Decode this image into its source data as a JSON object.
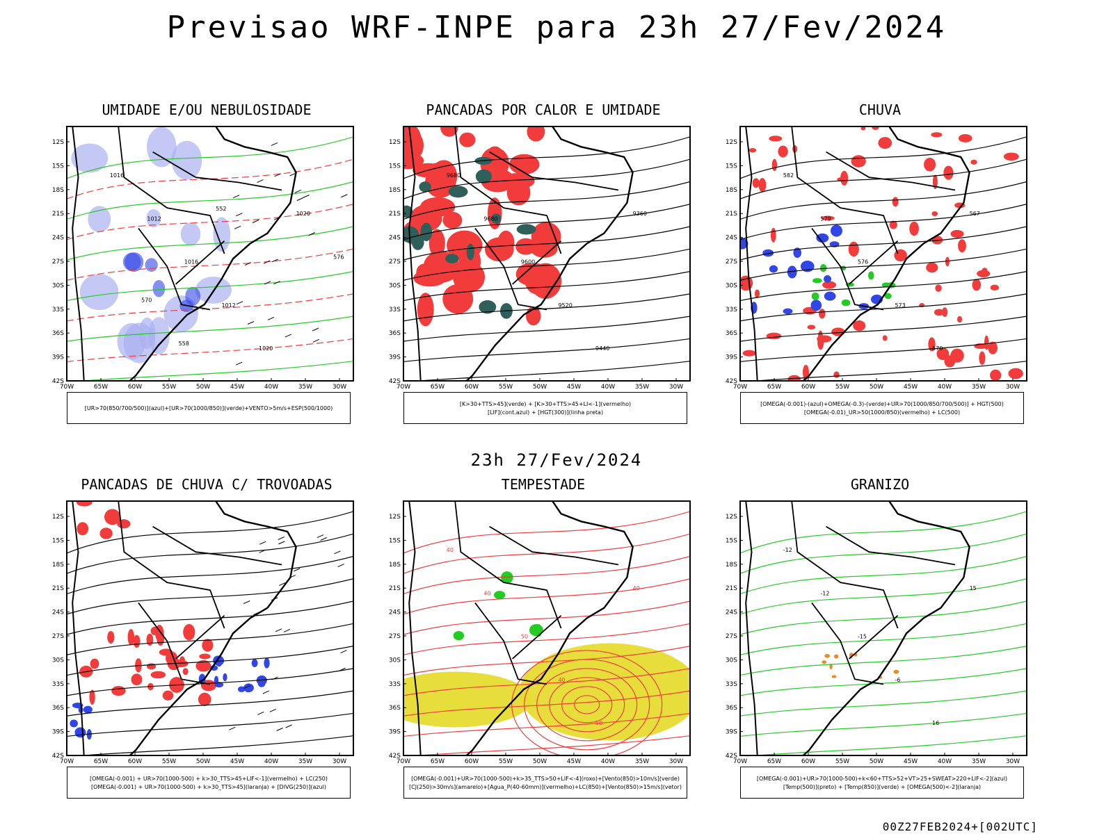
{
  "header": {
    "title": "Previsao WRF-INPE  para 23h 27/Fev/2024"
  },
  "subtitle": "23h 27/Fev/2024",
  "footer": "00Z27FEB2024+[002UTC]",
  "axes": {
    "lat_labels": [
      "12S",
      "15S",
      "18S",
      "21S",
      "24S",
      "27S",
      "30S",
      "33S",
      "36S",
      "39S",
      "42S"
    ],
    "lon_labels": [
      "70W",
      "65W",
      "60W",
      "55W",
      "50W",
      "45W",
      "40W",
      "35W",
      "30W"
    ]
  },
  "colors": {
    "red": "#f23c3c",
    "blue": "#3246e6",
    "green": "#22cc22",
    "yellow": "#e6dc32",
    "teal": "#2f5f5a",
    "lavender": "#aab0f0",
    "orange": "#e88a2a"
  },
  "panels": [
    {
      "title": "UMIDADE E/OU NEBULOSIDADE",
      "legend": [
        "[UR>70(850/700/500)](azul)+[UR>70(1000/850)](verde)+VENTO>5m/s+ESP(500/1000)"
      ],
      "labels": [
        "1016",
        "1012",
        "1016",
        "1012",
        "1020",
        "1020",
        "576",
        "570",
        "558",
        "552"
      ]
    },
    {
      "title": "PANCADAS POR CALOR E UMIDADE",
      "legend": [
        "[K>30+TTS>45](verde) + [K>30+TTS>45+LI<-1](vermelho)",
        "[LIF](cont.azul) + [HGT(300)](linha preta)"
      ],
      "labels": [
        "9680",
        "9680",
        "9600",
        "9520",
        "9440",
        "9360"
      ]
    },
    {
      "title": "CHUVA",
      "legend": [
        "[OMEGA(-0.001)-(azul)+OMEGA(-0.3)-(verde)+UR>70(1000/850/700/500)] + HGT(500)",
        "[OMEGA(-0.01)_UR>50(1000/850)(vermelho) + LC(500)"
      ],
      "labels": [
        "582",
        "579",
        "576",
        "573",
        "570",
        "567"
      ]
    },
    {
      "title": "PANCADAS DE CHUVA C/ TROVOADAS",
      "legend": [
        "[OMEGA(-0.001) + UR>70(1000-500) + k>30_TTS>45+LIF<-1](vermelho) + LC(250)",
        "[OMEGA(-0.001) + UR>70(1000-500) + k>30_TTS>45](laranja) + [DIVG(250)](azul)"
      ],
      "labels": []
    },
    {
      "title": "TEMPESTADE",
      "legend": [
        "[OMEGA(-0.001)+UR>70(1000-500)+k>35_TTS>50+LIF<-4](roxo)+[Vento(850)>10m/s](verde)",
        "[CJ(250)>30m/s](amarelo)+[Agua_P(40-60mm)](vermelho)+LC(850)+[Vento(850)>15m/s](vetor)"
      ],
      "labels": [
        "40",
        "40",
        "50",
        "40",
        "50",
        "40"
      ]
    },
    {
      "title": "GRANIZO",
      "legend": [
        "[OMEGA(-0.001)+UR>70(1000-500)+k<60+TTS>52+VT>25+SWEAT>220+LIF<-2](azul)",
        "[Temp(500)](preto) + [Temp(850)](verde) + [OMEGA(500)<-2](laranja)"
      ],
      "labels": [
        "-12",
        "-12",
        "-15",
        "-6",
        "16",
        "15"
      ]
    }
  ]
}
